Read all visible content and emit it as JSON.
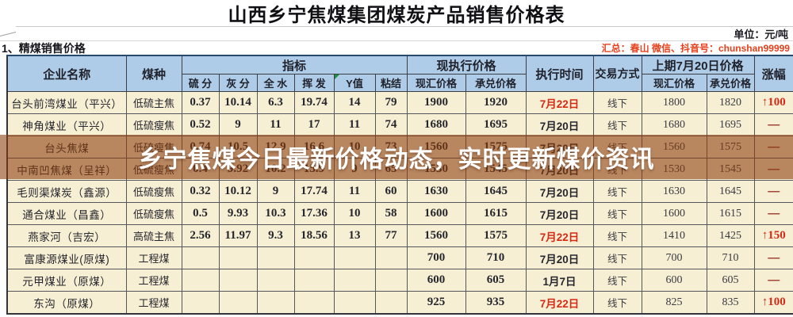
{
  "title": "山西乡宁焦煤集团煤炭产品销售价格表",
  "unit_note": "单位：元/吨",
  "section_title": "1、精煤销售价格",
  "summary_note": "汇总：春山 微信、抖音号：chunshan99999",
  "watermark": "乡宁焦煤今日最新价格动态，实时更新煤价资讯",
  "colors": {
    "header_bg": "#aecce8",
    "cell_bg": "#f6efd3",
    "alert_red": "#d52a16",
    "dash_maroon": "#a04432",
    "watermark_brown": "#8c3c0c",
    "summary_orange": "#e8401c"
  },
  "table": {
    "header": {
      "company": "企业名称",
      "coal_type": "煤种",
      "indicators": "指标",
      "current_price": "现执行价格",
      "exec_time": "执行时间",
      "trade_mode": "交易方式",
      "prev_price": "上期7月20日价格",
      "change": "涨幅",
      "sub": [
        "硫 分",
        "灰 分",
        "全 水",
        "挥 发",
        "Y值",
        "粘结",
        "现汇价格",
        "承兑价格",
        "现汇价格",
        "承兑价格"
      ]
    },
    "rows": [
      {
        "company": "台头前湾煤业（平兴）",
        "coal": "低硫主焦",
        "sulfur": "0.37",
        "ash": "10.14",
        "moisture": "6.3",
        "volatile": "19.74",
        "y": "14",
        "g": "79",
        "cash": "1900",
        "draft": "1920",
        "date": "7月22日",
        "date_red": true,
        "mode": "线下",
        "prev_cash": "1800",
        "prev_draft": "1820",
        "change": "↑100",
        "change_type": "up"
      },
      {
        "company": "神角煤业（平兴）",
        "coal": "低硫瘦焦",
        "sulfur": "0.52",
        "ash": "9",
        "moisture": "11",
        "volatile": "17",
        "y": "11",
        "g": "74",
        "cash": "1680",
        "draft": "1695",
        "date": "7月20日",
        "date_red": false,
        "mode": "线下",
        "prev_cash": "1680",
        "prev_draft": "1695",
        "change": "—",
        "change_type": "dash"
      },
      {
        "company": "台头焦煤",
        "coal": "低硫瘦焦",
        "sulfur": "0.74",
        "ash": "10.5",
        "moisture": "12.9",
        "volatile": "16.6",
        "y": "10",
        "g": "73",
        "cash": "1560",
        "draft": "1575",
        "date": "7月20日",
        "date_red": false,
        "mode": "线下",
        "prev_cash": "1560",
        "prev_draft": "1575",
        "change": "—",
        "change_type": "dash"
      },
      {
        "company": "中南凹焦煤（呈祥）",
        "coal": "低硫瘦焦",
        "sulfur": "0.4",
        "ash": "9.92",
        "moisture": "10.2",
        "volatile": "15.9",
        "y": "9",
        "g": "65",
        "cash": "1530",
        "draft": "1545",
        "date": "7月20日",
        "date_red": false,
        "mode": "线下",
        "prev_cash": "1530",
        "prev_draft": "1545",
        "change": "—",
        "change_type": "dash"
      },
      {
        "company": "毛则渠煤炭（鑫源）",
        "coal": "低硫瘦焦",
        "sulfur": "0.32",
        "ash": "10.12",
        "moisture": "9",
        "volatile": "17.74",
        "y": "11",
        "g": "60",
        "cash": "1630",
        "draft": "1645",
        "date": "7月20日",
        "date_red": false,
        "mode": "线下",
        "prev_cash": "1630",
        "prev_draft": "1645",
        "change": "—",
        "change_type": "dash"
      },
      {
        "company": "通合煤业（昌鑫）",
        "coal": "低硫瘦焦",
        "sulfur": "0.5",
        "ash": "9.93",
        "moisture": "10.3",
        "volatile": "17.36",
        "y": "10",
        "g": "58",
        "cash": "1600",
        "draft": "1615",
        "date": "7月20日",
        "date_red": false,
        "mode": "线下",
        "prev_cash": "1600",
        "prev_draft": "1615",
        "change": "—",
        "change_type": "dash"
      },
      {
        "company": "燕家河（吉宏）",
        "coal": "高硫主焦",
        "sulfur": "2.56",
        "ash": "11.97",
        "moisture": "9.3",
        "volatile": "18.56",
        "y": "13",
        "g": "77",
        "cash": "1560",
        "draft": "1575",
        "date": "7月22日",
        "date_red": true,
        "mode": "线下",
        "prev_cash": "1410",
        "prev_draft": "1425",
        "change": "↑150",
        "change_type": "up"
      },
      {
        "company": "富康源煤业(原煤)",
        "coal": "工程煤",
        "sulfur": "",
        "ash": "",
        "moisture": "",
        "volatile": "",
        "y": "",
        "g": "",
        "cash": "700",
        "draft": "710",
        "date": "7月20日",
        "date_red": false,
        "mode": "线下",
        "prev_cash": "700",
        "prev_draft": "710",
        "change": "—",
        "change_type": "dash"
      },
      {
        "company": "元甲煤业（原煤）",
        "coal": "工程煤",
        "sulfur": "",
        "ash": "",
        "moisture": "",
        "volatile": "",
        "y": "",
        "g": "",
        "cash": "600",
        "draft": "605",
        "date": "1月7日",
        "date_red": false,
        "mode": "线下",
        "prev_cash": "600",
        "prev_draft": "605",
        "change": "—",
        "change_type": "dash"
      },
      {
        "company": "东沟（原煤）",
        "coal": "工程煤",
        "sulfur": "",
        "ash": "",
        "moisture": "",
        "volatile": "",
        "y": "",
        "g": "",
        "cash": "925",
        "draft": "935",
        "date": "7月22日",
        "date_red": true,
        "mode": "线下",
        "prev_cash": "825",
        "prev_draft": "835",
        "change": "↑100",
        "change_type": "up"
      }
    ]
  }
}
